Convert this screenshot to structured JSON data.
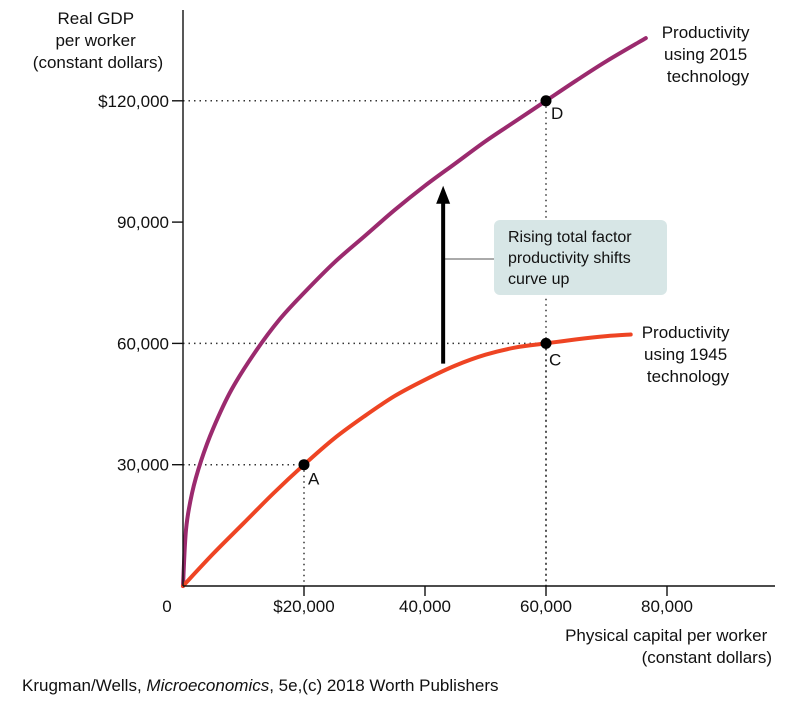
{
  "chart_data": {
    "type": "line",
    "ylabel_lines": [
      "Real GDP",
      "per worker",
      "(constant dollars)"
    ],
    "xlabel_lines": [
      "Physical capital per worker",
      "(constant dollars)"
    ],
    "xlim": [
      0,
      90000
    ],
    "ylim": [
      0,
      140000
    ],
    "x_ticks": [
      {
        "value": 0,
        "label": "0"
      },
      {
        "value": 20000,
        "label": "$20,000"
      },
      {
        "value": 40000,
        "label": "40,000"
      },
      {
        "value": 60000,
        "label": "60,000"
      },
      {
        "value": 80000,
        "label": "80,000"
      }
    ],
    "y_ticks": [
      {
        "value": 30000,
        "label": "30,000"
      },
      {
        "value": 60000,
        "label": "60,000"
      },
      {
        "value": 90000,
        "label": "90,000"
      },
      {
        "value": 120000,
        "label": "$120,000"
      }
    ],
    "series": [
      {
        "name": "Productivity using 2015 technology",
        "label_lines": [
          "Productivity",
          "using 2015",
          "technology"
        ],
        "color": "#9b2a6e",
        "x": [
          0,
          500,
          1500,
          3000,
          5000,
          8000,
          12000,
          16000,
          20000,
          25000,
          30000,
          35000,
          40000,
          45000,
          50000,
          55000,
          60000,
          65000,
          70000,
          76500
        ],
        "y": [
          0,
          14000,
          23000,
          31000,
          39000,
          48500,
          58000,
          66000,
          72500,
          80000,
          86500,
          93000,
          99000,
          104500,
          110000,
          115000,
          120000,
          125000,
          129800,
          135500
        ]
      },
      {
        "name": "Productivity using 1945 technology",
        "label_lines": [
          "Productivity",
          "using 1945",
          "technology"
        ],
        "color": "#ee4423",
        "x": [
          0,
          5000,
          10000,
          15000,
          20000,
          25000,
          30000,
          35000,
          40000,
          45000,
          50000,
          55000,
          60000,
          65000,
          70000,
          74000
        ],
        "y": [
          0,
          8000,
          15500,
          23000,
          30000,
          36500,
          42000,
          47000,
          51000,
          54500,
          57200,
          59000,
          60000,
          61000,
          61800,
          62200
        ]
      }
    ],
    "points": [
      {
        "label": "A",
        "x": 20000,
        "y": 30000
      },
      {
        "label": "C",
        "x": 60000,
        "y": 60000
      },
      {
        "label": "D",
        "x": 60000,
        "y": 120000
      }
    ],
    "annotation": {
      "lines": [
        "Rising total factor",
        "productivity shifts",
        "curve up"
      ],
      "arrow_x": 43000,
      "arrow_from_y": 55000,
      "arrow_to_y": 99000,
      "box_color": "#d7e6e6"
    },
    "grid": false
  },
  "credit": {
    "authors": "Krugman/Wells, ",
    "book": "Microeconomics",
    "rest": ", 5e,(c) 2018 Worth Publishers"
  }
}
